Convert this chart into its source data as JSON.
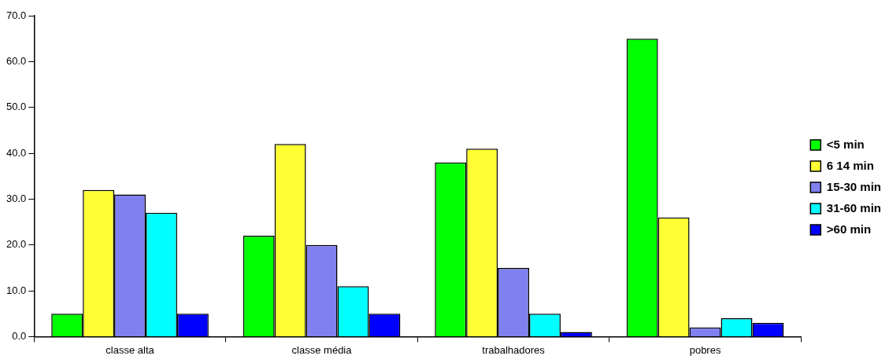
{
  "chart_data": {
    "type": "bar",
    "categories": [
      "classe alta",
      "classe média",
      "trabalhadores",
      "pobres"
    ],
    "series": [
      {
        "name": "<5 min",
        "color": "#00ff00",
        "values": [
          5,
          22,
          38,
          65
        ]
      },
      {
        "name": "6 14 min",
        "color": "#ffff33",
        "values": [
          32,
          42,
          41,
          26
        ]
      },
      {
        "name": "15-30 min",
        "color": "#8080f0",
        "values": [
          31,
          20,
          15,
          2
        ]
      },
      {
        "name": "31-60 min",
        "color": "#00ffff",
        "values": [
          27,
          11,
          5,
          4
        ]
      },
      {
        "name": ">60 min",
        "color": "#0000ff",
        "values": [
          5,
          5,
          1,
          3
        ]
      }
    ],
    "ylim": [
      0,
      70
    ],
    "yticks": [
      {
        "value": 0,
        "label": "0.0"
      },
      {
        "value": 10,
        "label": "10.0"
      },
      {
        "value": 20,
        "label": "20.0"
      },
      {
        "value": 30,
        "label": "30.0"
      },
      {
        "value": 40,
        "label": "40.0"
      },
      {
        "value": 50,
        "label": "50.0"
      },
      {
        "value": 60,
        "label": "60.0"
      },
      {
        "value": 70,
        "label": "70.0"
      }
    ],
    "grid": false,
    "legend": "right"
  }
}
